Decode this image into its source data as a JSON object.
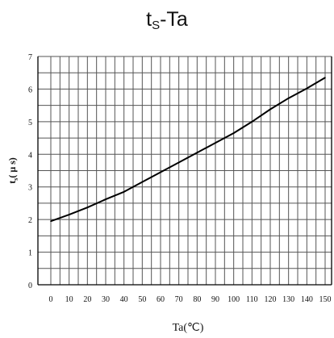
{
  "chart_data": {
    "type": "line",
    "title": {
      "main": "t",
      "sub": "S",
      "suffix": "-Ta"
    },
    "xlabel": "Ta(℃)",
    "ylabel": "t",
    "ylabel_sub": "s",
    "ylabel_unit": "( μ s)",
    "xlim": [
      0,
      150
    ],
    "ylim": [
      0,
      7
    ],
    "xticks": [
      "0",
      "10",
      "20",
      "30",
      "40",
      "50",
      "60",
      "70",
      "80",
      "90",
      "100",
      "110",
      "120",
      "130",
      "140",
      "150"
    ],
    "yticks": [
      "0",
      "1",
      "2",
      "3",
      "4",
      "5",
      "6",
      "7"
    ],
    "grid": true,
    "series": [
      {
        "x": [
          0,
          10,
          20,
          30,
          40,
          50,
          60,
          70,
          80,
          90,
          100,
          110,
          120,
          130,
          140,
          150
        ],
        "y": [
          1.95,
          2.15,
          2.37,
          2.62,
          2.85,
          3.15,
          3.45,
          3.75,
          4.05,
          4.35,
          4.65,
          5.0,
          5.38,
          5.72,
          6.02,
          6.35
        ]
      }
    ],
    "line_color": "#000000"
  }
}
